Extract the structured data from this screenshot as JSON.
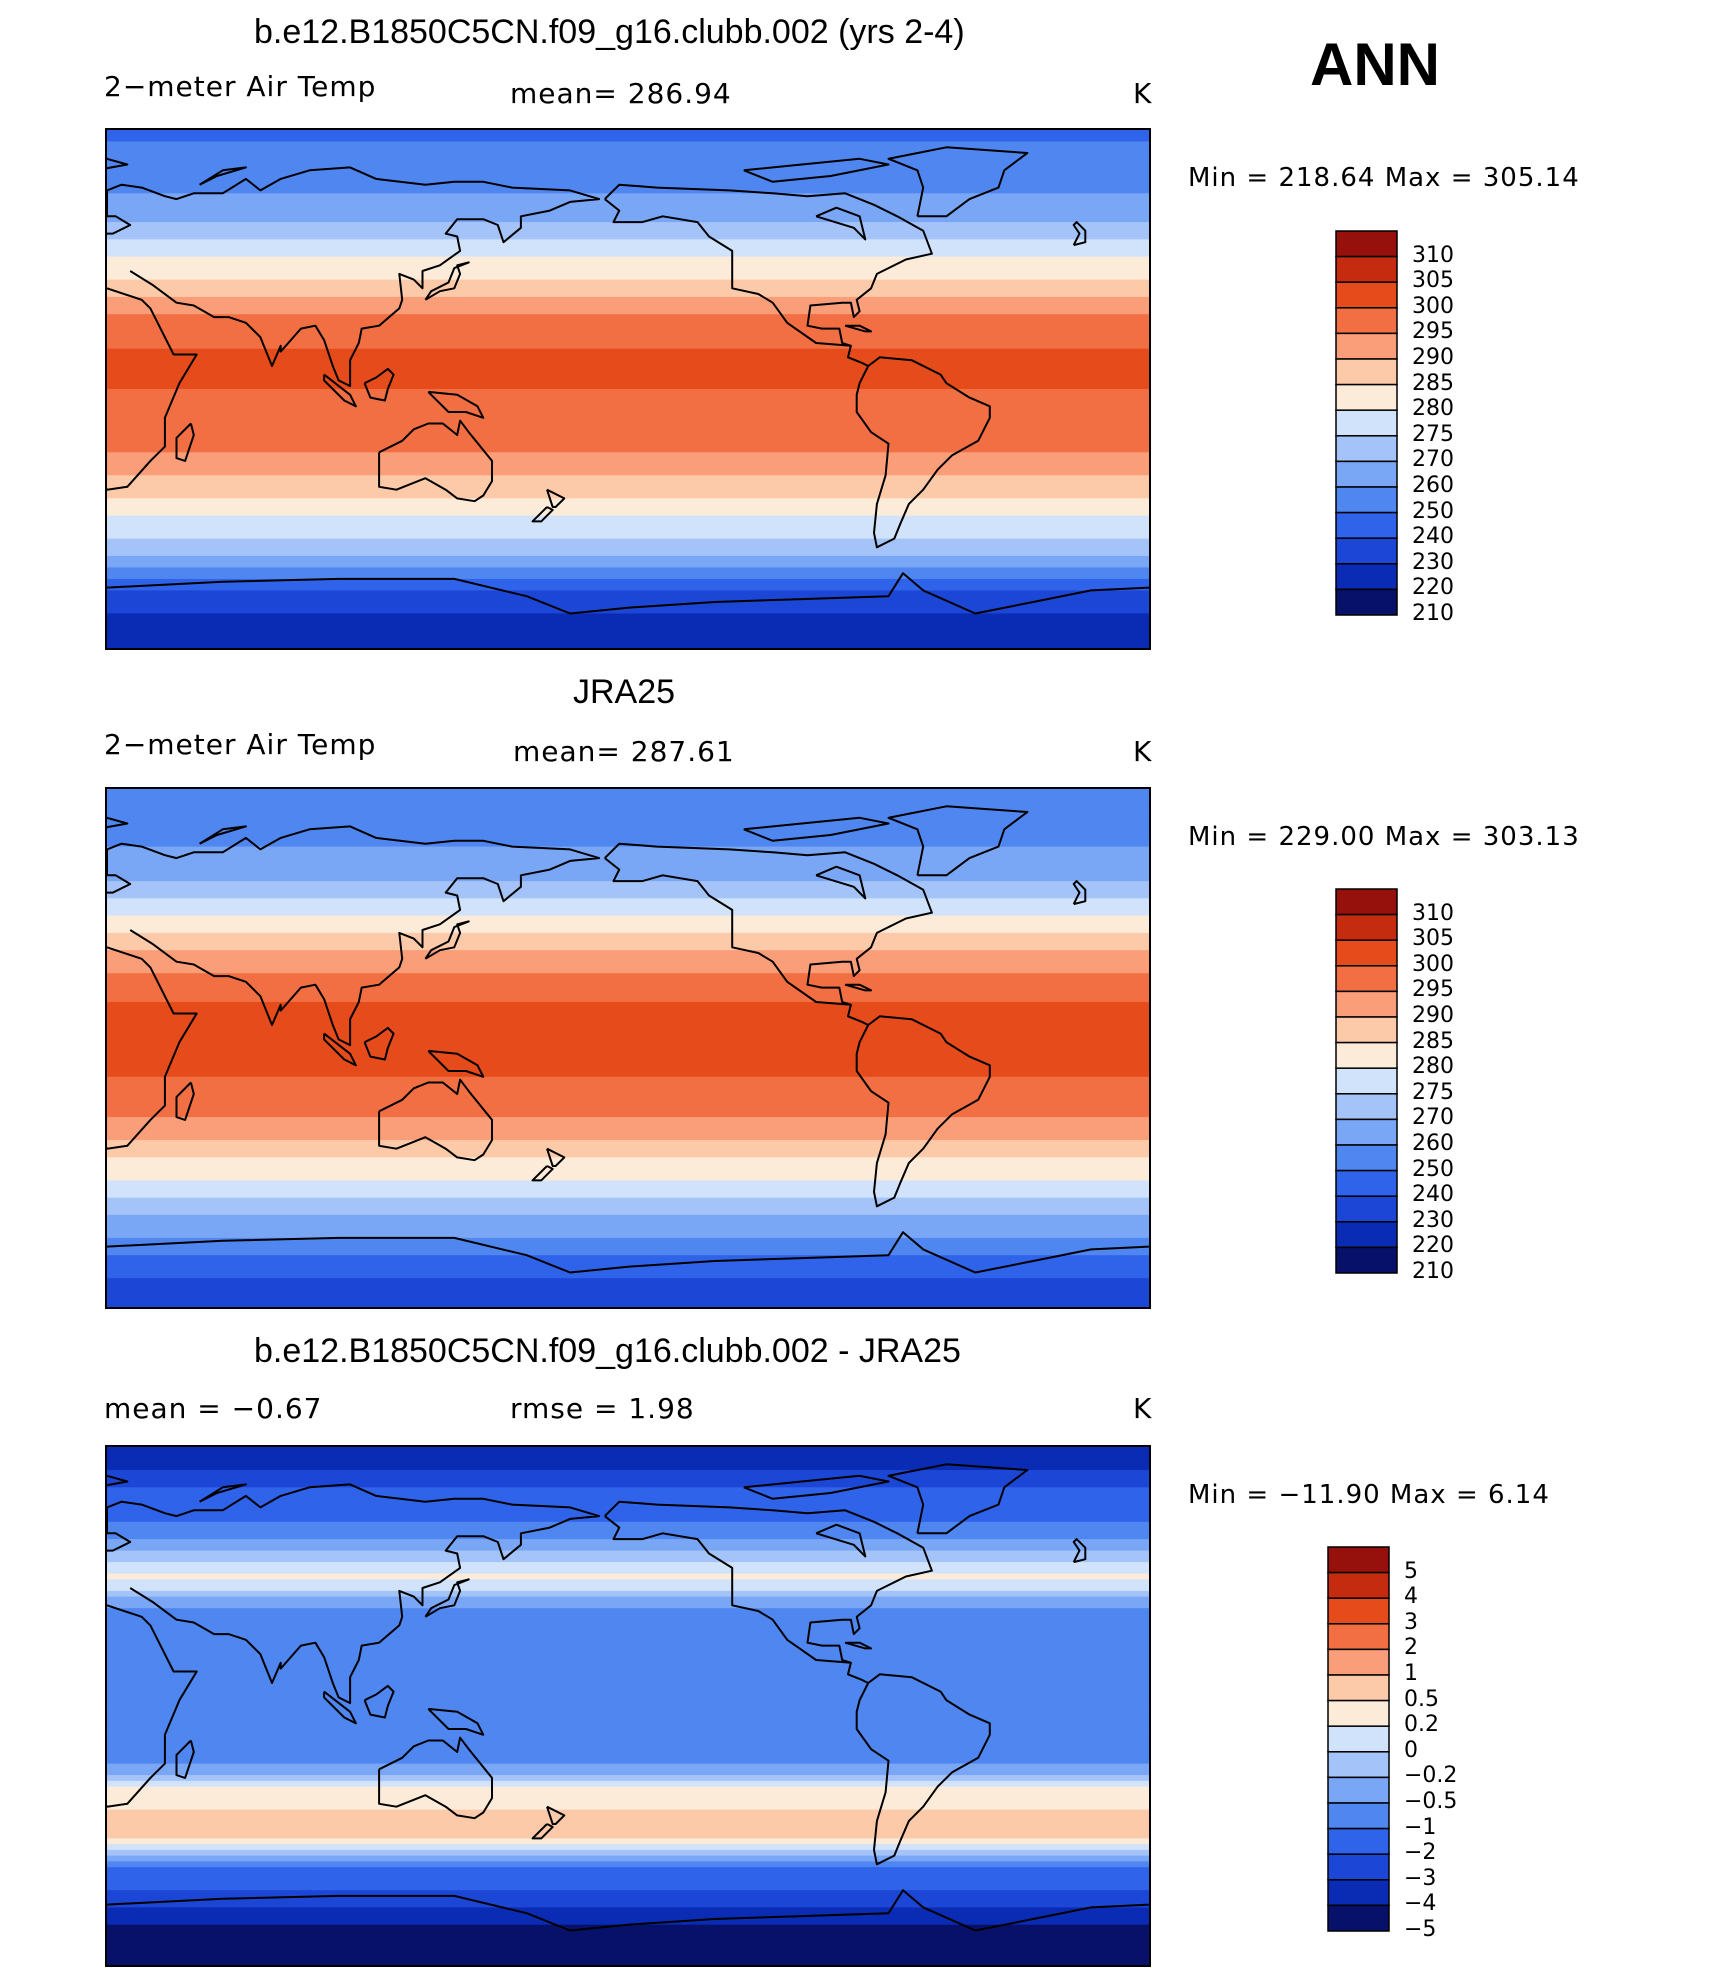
{
  "season": "ANN",
  "colors": {
    "abs": [
      "#08116a",
      "#0a2bb4",
      "#1c46d6",
      "#2f63ea",
      "#4f86f0",
      "#79a6f5",
      "#a4c3f8",
      "#d1e3fb",
      "#fdebd9",
      "#fccaa9",
      "#f99e79",
      "#f26f44",
      "#e64b1b",
      "#c52b0f",
      "#96110b"
    ],
    "diff": [
      "#08116a",
      "#0a2bb4",
      "#1c46d6",
      "#2f63ea",
      "#4f86f0",
      "#79a6f5",
      "#a4c3f8",
      "#d1e3fb",
      "#fdebd9",
      "#fccaa9",
      "#f99e79",
      "#f26f44",
      "#e64b1b",
      "#c52b0f",
      "#96110b"
    ]
  },
  "chart_data": [
    {
      "type": "heatmap",
      "title": "b.e12.B1850C5CN.f09_g16.clubb.002 (yrs 2-4)",
      "variable": "2−meter Air Temp",
      "mean_label": "mean= 286.94",
      "mean": 286.94,
      "units": "K",
      "minmax_label": "Min  =  218.64  Max  =  305.14",
      "min": 218.64,
      "max": 305.14,
      "levels": [
        "310",
        "305",
        "300",
        "295",
        "290",
        "285",
        "280",
        "275",
        "270",
        "260",
        "250",
        "240",
        "230",
        "220",
        "210"
      ],
      "lat_profile_K": [
        [
          90,
          248
        ],
        [
          75,
          254
        ],
        [
          60,
          268
        ],
        [
          50,
          276
        ],
        [
          40,
          284
        ],
        [
          30,
          292
        ],
        [
          20,
          298
        ],
        [
          10,
          301
        ],
        [
          0,
          300
        ],
        [
          -10,
          299
        ],
        [
          -20,
          296
        ],
        [
          -30,
          290
        ],
        [
          -40,
          283
        ],
        [
          -50,
          276
        ],
        [
          -60,
          268
        ],
        [
          -70,
          240
        ],
        [
          -80,
          228
        ],
        [
          -90,
          222
        ]
      ]
    },
    {
      "type": "heatmap",
      "title": "JRA25",
      "variable": "2−meter Air Temp",
      "mean_label": "mean= 287.61",
      "mean": 287.61,
      "units": "K",
      "minmax_label": "Min  =  229.00  Max  =  303.13",
      "min": 229.0,
      "max": 303.13,
      "levels": [
        "310",
        "305",
        "300",
        "295",
        "290",
        "285",
        "280",
        "275",
        "270",
        "260",
        "250",
        "240",
        "230",
        "220",
        "210"
      ],
      "lat_profile_K": [
        [
          90,
          252
        ],
        [
          75,
          256
        ],
        [
          60,
          268
        ],
        [
          50,
          277
        ],
        [
          40,
          285
        ],
        [
          30,
          293
        ],
        [
          20,
          299
        ],
        [
          10,
          302
        ],
        [
          0,
          302
        ],
        [
          -10,
          300
        ],
        [
          -20,
          297
        ],
        [
          -30,
          291
        ],
        [
          -40,
          284
        ],
        [
          -50,
          277
        ],
        [
          -60,
          268
        ],
        [
          -70,
          252
        ],
        [
          -80,
          240
        ],
        [
          -90,
          236
        ]
      ]
    },
    {
      "type": "heatmap",
      "title": "b.e12.B1850C5CN.f09_g16.clubb.002 - JRA25",
      "mean_label": "mean =    −0.67",
      "rmse_label": "rmse =     1.98",
      "mean": -0.67,
      "rmse": 1.98,
      "units": "K",
      "minmax_label": "Min  =  −11.90  Max  =     6.14",
      "min": -11.9,
      "max": 6.14,
      "levels": [
        "5",
        "4",
        "3",
        "2",
        "1",
        "0.5",
        "0.2",
        "0",
        "−0.2",
        "−0.5",
        "−1",
        "−2",
        "−3",
        "−4",
        "−5"
      ],
      "lat_profile_K": [
        [
          90,
          -4
        ],
        [
          75,
          -2
        ],
        [
          60,
          -0.6
        ],
        [
          45,
          0.3
        ],
        [
          30,
          -0.8
        ],
        [
          15,
          -1
        ],
        [
          0,
          -1
        ],
        [
          -15,
          -0.8
        ],
        [
          -30,
          0.3
        ],
        [
          -45,
          0.8
        ],
        [
          -60,
          -1.5
        ],
        [
          -70,
          -3
        ],
        [
          -80,
          -5
        ],
        [
          -90,
          -6
        ]
      ]
    }
  ]
}
